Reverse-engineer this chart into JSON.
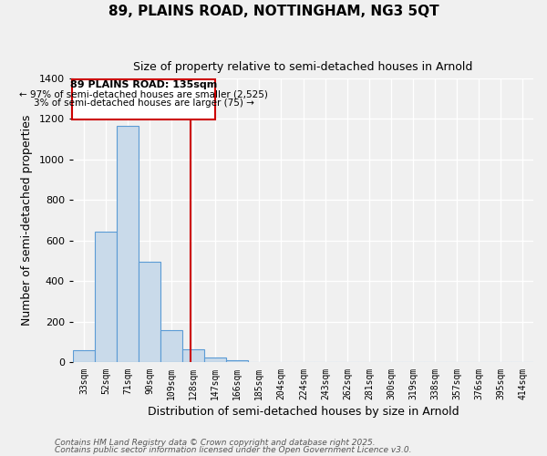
{
  "title": "89, PLAINS ROAD, NOTTINGHAM, NG3 5QT",
  "subtitle": "Size of property relative to semi-detached houses in Arnold",
  "xlabel": "Distribution of semi-detached houses by size in Arnold",
  "ylabel": "Number of semi-detached properties",
  "bar_values": [
    60,
    645,
    1165,
    495,
    160,
    65,
    25,
    10,
    0,
    0,
    0,
    0,
    0,
    0,
    0,
    0,
    0,
    0,
    0,
    0,
    0
  ],
  "categories": [
    "33sqm",
    "52sqm",
    "71sqm",
    "90sqm",
    "109sqm",
    "128sqm",
    "147sqm",
    "166sqm",
    "185sqm",
    "204sqm",
    "224sqm",
    "243sqm",
    "262sqm",
    "281sqm",
    "300sqm",
    "319sqm",
    "338sqm",
    "357sqm",
    "376sqm",
    "395sqm",
    "414sqm"
  ],
  "bar_color": "#c9daea",
  "bar_edge_color": "#5b9bd5",
  "background_color": "#f0f0f0",
  "grid_color": "#ffffff",
  "ylim": [
    0,
    1400
  ],
  "yticks": [
    0,
    200,
    400,
    600,
    800,
    1000,
    1200,
    1400
  ],
  "property_line_color": "#cc0000",
  "annotation_title": "89 PLAINS ROAD: 135sqm",
  "annotation_line1": "← 97% of semi-detached houses are smaller (2,525)",
  "annotation_line2": "3% of semi-detached houses are larger (75) →",
  "annotation_box_color": "#cc0000",
  "footnote1": "Contains HM Land Registry data © Crown copyright and database right 2025.",
  "footnote2": "Contains public sector information licensed under the Open Government Licence v3.0.",
  "bin_starts": [
    33,
    52,
    71,
    90,
    109,
    128,
    147,
    166,
    185,
    204,
    224,
    243,
    262,
    281,
    300,
    319,
    338,
    357,
    376,
    395,
    414
  ],
  "bin_width": 19
}
